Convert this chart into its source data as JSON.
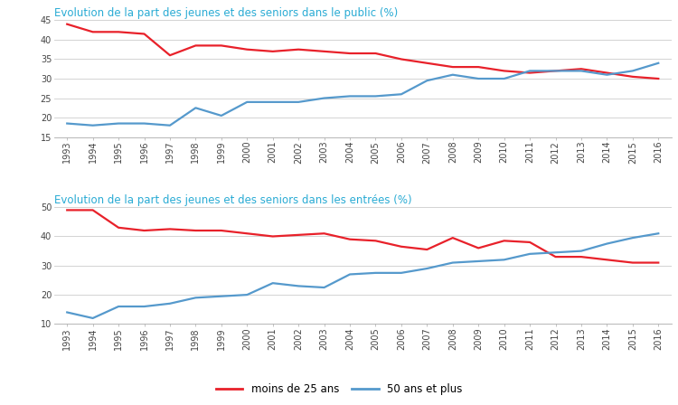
{
  "years": [
    1993,
    1994,
    1995,
    1996,
    1997,
    1998,
    1999,
    2000,
    2001,
    2002,
    2003,
    2004,
    2005,
    2006,
    2007,
    2008,
    2009,
    2010,
    2011,
    2012,
    2013,
    2014,
    2015,
    2016
  ],
  "public_young": [
    44,
    42,
    42,
    41.5,
    36,
    38.5,
    38.5,
    37.5,
    37,
    37.5,
    37,
    36.5,
    36.5,
    35,
    34,
    33,
    33,
    32,
    31.5,
    32,
    32.5,
    31.5,
    30.5,
    30
  ],
  "public_senior": [
    18.5,
    18,
    18.5,
    18.5,
    18,
    22.5,
    20.5,
    24,
    24,
    24,
    25,
    25.5,
    25.5,
    26,
    29.5,
    31,
    30,
    30,
    32,
    32,
    32,
    31,
    32,
    34
  ],
  "entrees_young": [
    49,
    49,
    43,
    42,
    42.5,
    42,
    42,
    41,
    40,
    40.5,
    41,
    39,
    38.5,
    36.5,
    35.5,
    39.5,
    36,
    38.5,
    38,
    33,
    33,
    32,
    31,
    31
  ],
  "entrees_senior": [
    14,
    12,
    16,
    16,
    17,
    19,
    19.5,
    20,
    24,
    23,
    22.5,
    27,
    27.5,
    27.5,
    29,
    31,
    31.5,
    32,
    34,
    34.5,
    35,
    37.5,
    39.5,
    41
  ],
  "title1": "Evolution de la part des jeunes et des seniors dans le public (%)",
  "title2": "Evolution de la part des jeunes et des seniors dans les entrées (%)",
  "title_color": "#29ABD4",
  "red_color": "#E8212A",
  "blue_color": "#5599CC",
  "ylim1": [
    15,
    45
  ],
  "yticks1": [
    15,
    20,
    25,
    30,
    35,
    40,
    45
  ],
  "ylim2": [
    10,
    50
  ],
  "yticks2": [
    10,
    20,
    30,
    40,
    50
  ],
  "legend_young": "moins de 25 ans",
  "legend_senior": "50 ans et plus",
  "bg_color": "#FFFFFF",
  "grid_color": "#CCCCCC"
}
